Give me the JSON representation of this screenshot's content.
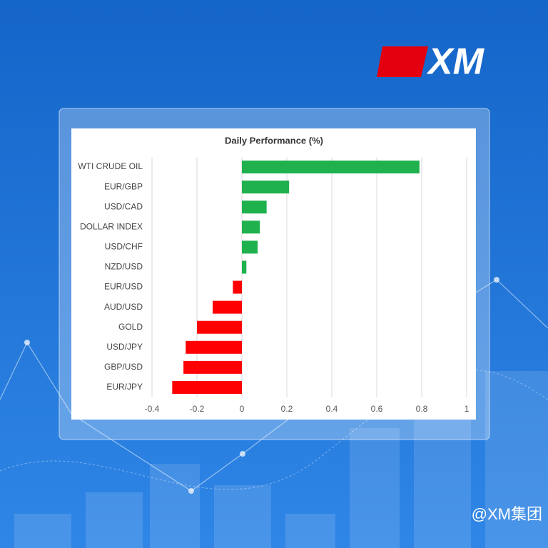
{
  "brand": {
    "logo": "XM",
    "watermark": "@XM集团"
  },
  "chart_data": {
    "type": "bar",
    "orientation": "horizontal",
    "title": "Daily Performance (%)",
    "categories": [
      "WTI CRUDE OIL",
      "EUR/GBP",
      "USD/CAD",
      "DOLLAR INDEX",
      "USD/CHF",
      "NZD/USD",
      "EUR/USD",
      "AUD/USD",
      "GOLD",
      "USD/JPY",
      "GBP/USD",
      "EUR/JPY"
    ],
    "values": [
      0.79,
      0.21,
      0.11,
      0.08,
      0.07,
      0.02,
      -0.04,
      -0.13,
      -0.2,
      -0.25,
      -0.26,
      -0.31
    ],
    "positive_color": "#1fb14e",
    "negative_color": "#ff0000",
    "xlim": [
      -0.4,
      1
    ],
    "xticks": [
      -0.4,
      -0.2,
      0,
      0.2,
      0.4,
      0.6,
      0.8,
      1
    ],
    "grid": true
  }
}
